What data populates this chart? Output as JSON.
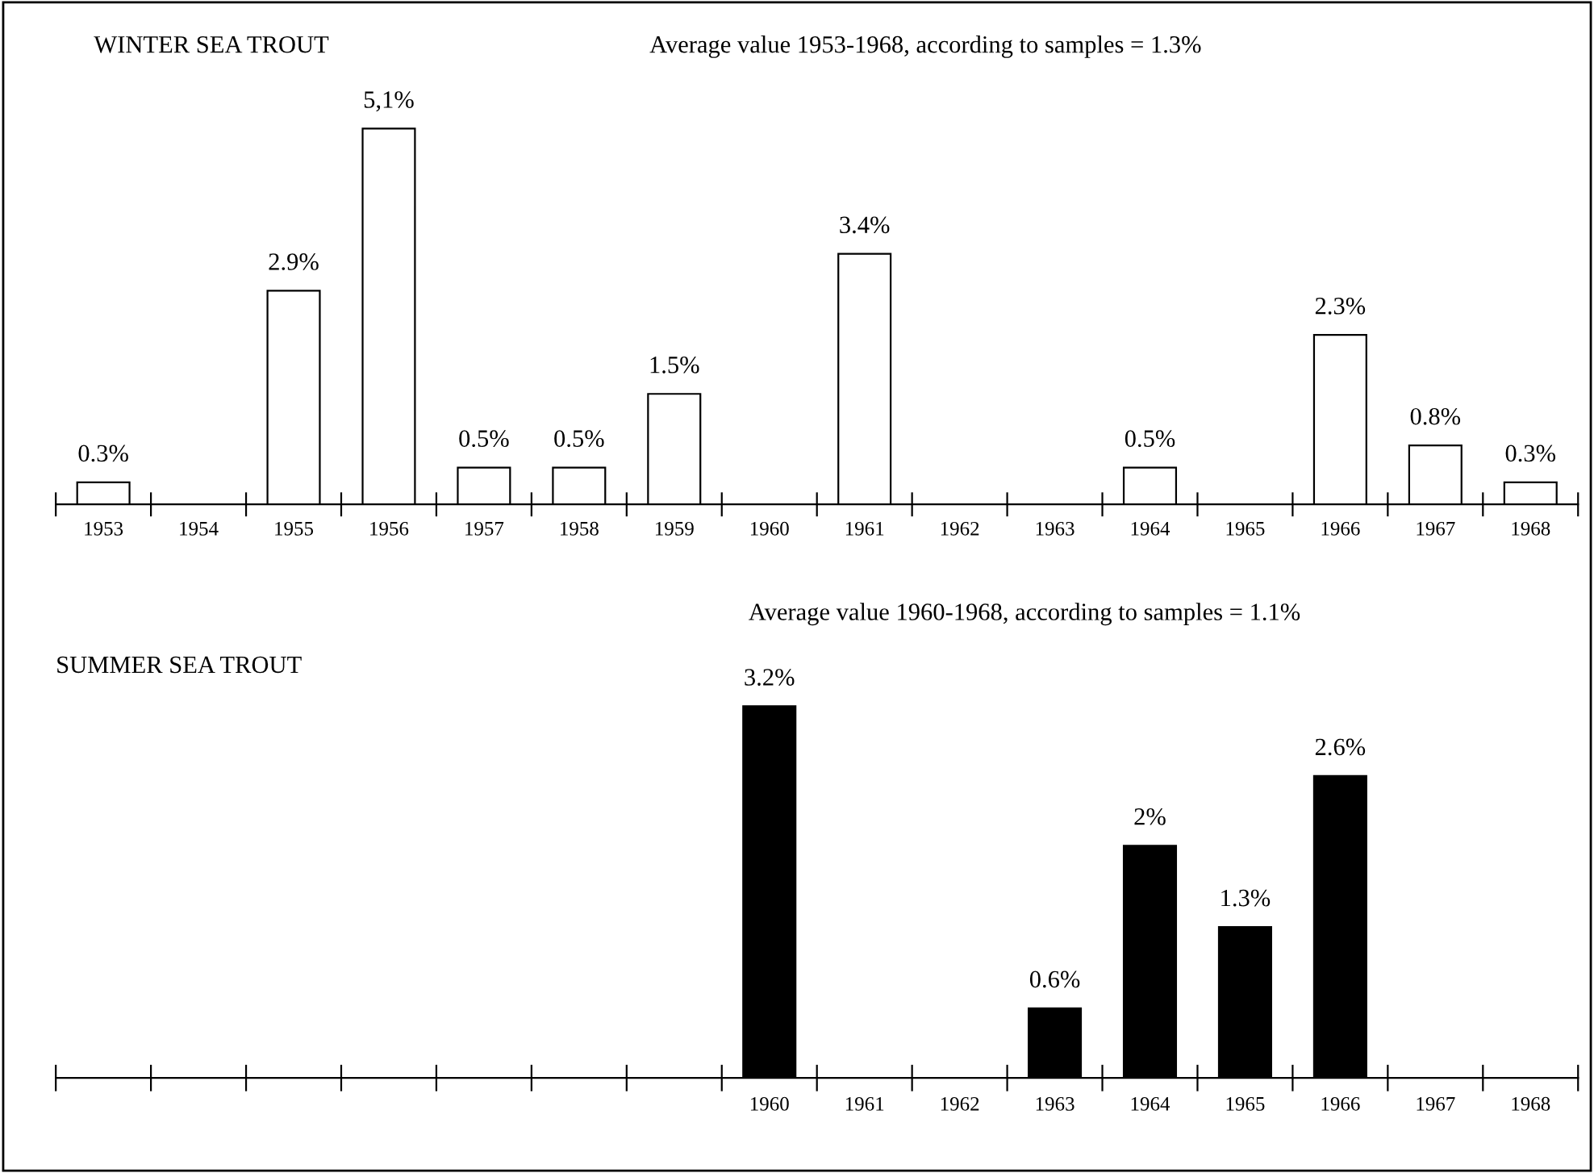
{
  "chart_data": [
    {
      "type": "bar",
      "title": "WINTER SEA TROUT",
      "annotations": [
        "Average value 1953-1968, according to samples = 1.3%"
      ],
      "categories": [
        "1953",
        "1954",
        "1955",
        "1956",
        "1957",
        "1958",
        "1959",
        "1960",
        "1961",
        "1962",
        "1963",
        "1964",
        "1965",
        "1966",
        "1967",
        "1968"
      ],
      "series": [
        {
          "color": "#ffffff",
          "values": [
            0.3,
            null,
            2.9,
            5.1,
            0.5,
            0.5,
            1.5,
            null,
            3.4,
            null,
            null,
            0.5,
            null,
            2.3,
            0.8,
            0.3
          ],
          "value_labels": [
            "0.3%",
            null,
            "2.9%",
            "5,1%",
            "0.5%",
            "0.5%",
            "1.5%",
            null,
            "3.4%",
            null,
            null,
            "0.5%",
            null,
            "2.3%",
            "0.8%",
            "0.3%"
          ]
        }
      ],
      "tick_labels": "x"
    },
    {
      "type": "bar",
      "title": "SUMMER SEA TROUT",
      "annotations": [
        "Average value 1960-1968, according to samples = 1.1%"
      ],
      "categories": [
        null,
        null,
        null,
        null,
        null,
        null,
        null,
        "1960",
        "1961",
        "1962",
        "1963",
        "1964",
        "1965",
        "1966",
        "1967",
        "1968"
      ],
      "series": [
        {
          "color": "#000000",
          "values": [
            null,
            null,
            null,
            null,
            null,
            null,
            null,
            3.2,
            null,
            null,
            0.6,
            2,
            1.3,
            2.6,
            null,
            null
          ],
          "value_labels": [
            null,
            null,
            null,
            null,
            null,
            null,
            null,
            "3.2%",
            null,
            null,
            "0.6%",
            "2%",
            "1.3%",
            "2.6%",
            null,
            null
          ]
        }
      ],
      "tick_labels": "x"
    }
  ]
}
